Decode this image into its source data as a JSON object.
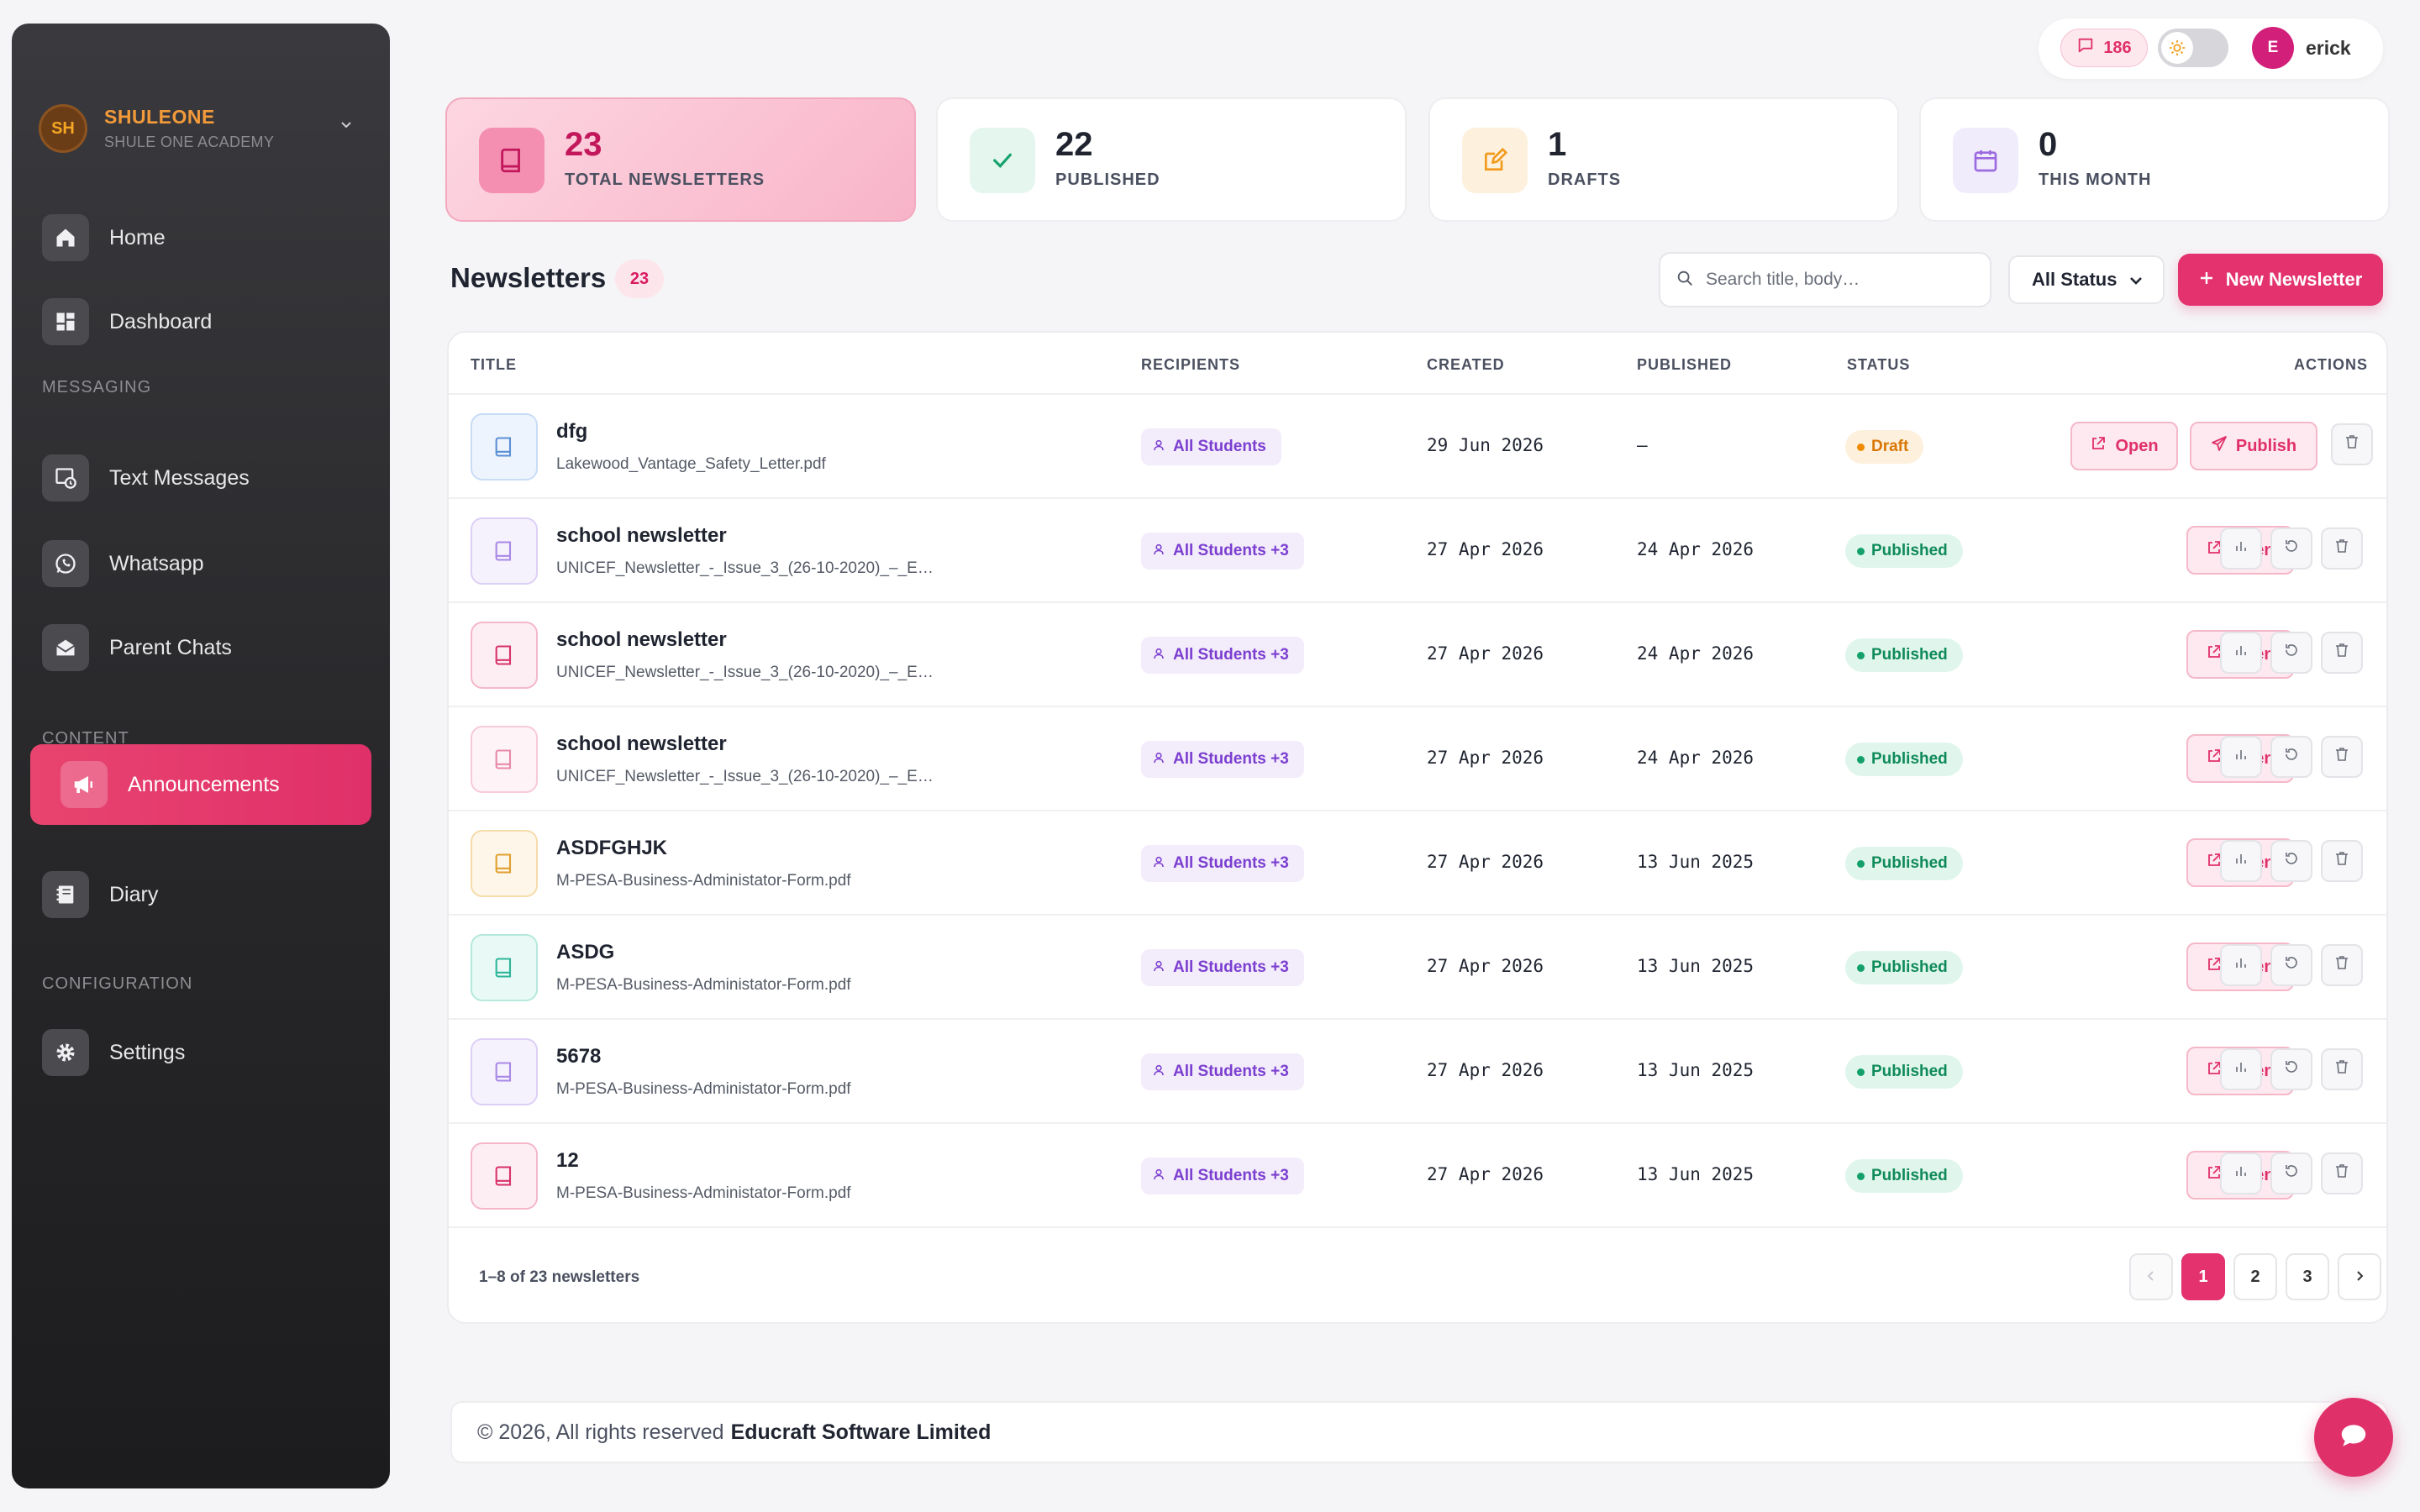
{
  "brand": {
    "initials": "SH",
    "name": "SHULEONE",
    "subtitle": "SHULE ONE ACADEMY"
  },
  "sidebar": {
    "items": [
      {
        "label": "Home",
        "icon": "home-icon"
      },
      {
        "label": "Dashboard",
        "icon": "dashboard-icon"
      },
      {
        "label": "Text Messages",
        "icon": "sms-icon"
      },
      {
        "label": "Whatsapp",
        "icon": "whatsapp-icon"
      },
      {
        "label": "Parent Chats",
        "icon": "mail-open-icon"
      },
      {
        "label": "Announcements",
        "icon": "megaphone-icon",
        "active": true
      },
      {
        "label": "Diary",
        "icon": "diary-icon"
      },
      {
        "label": "Settings",
        "icon": "gear-icon"
      }
    ],
    "sections": {
      "messaging": "MESSAGING",
      "content": "CONTENT",
      "configuration": "CONFIGURATION"
    }
  },
  "topbar": {
    "messages_count": "186",
    "user_initial": "E",
    "user_name": "erick"
  },
  "stats": [
    {
      "value": "23",
      "label": "TOTAL NEWSLETTERS",
      "icon": "book-icon"
    },
    {
      "value": "22",
      "label": "PUBLISHED",
      "icon": "check-icon"
    },
    {
      "value": "1",
      "label": "DRAFTS",
      "icon": "edit-icon"
    },
    {
      "value": "0",
      "label": "THIS MONTH",
      "icon": "calendar-icon"
    }
  ],
  "newsletters": {
    "title": "Newsletters",
    "count": "23",
    "search_placeholder": "Search title, body…",
    "status_filter": "All Status",
    "new_button": "New Newsletter",
    "columns": [
      "TITLE",
      "RECIPIENTS",
      "CREATED",
      "PUBLISHED",
      "STATUS",
      "ACTIONS"
    ],
    "rows": [
      {
        "title": "dfg",
        "file": "Lakewood_Vantage_Safety_Letter.pdf",
        "recipients": "All Students",
        "created": "29 Jun 2026",
        "published": "–",
        "status": "Draft"
      },
      {
        "title": "school newsletter",
        "file": "UNICEF_Newsletter_-_Issue_3_(26-10-2020)_–_E…",
        "recipients": "All Students +3",
        "created": "27 Apr 2026",
        "published": "24 Apr 2026",
        "status": "Published"
      },
      {
        "title": "school newsletter",
        "file": "UNICEF_Newsletter_-_Issue_3_(26-10-2020)_–_E…",
        "recipients": "All Students +3",
        "created": "27 Apr 2026",
        "published": "24 Apr 2026",
        "status": "Published"
      },
      {
        "title": "school newsletter",
        "file": "UNICEF_Newsletter_-_Issue_3_(26-10-2020)_–_E…",
        "recipients": "All Students +3",
        "created": "27 Apr 2026",
        "published": "24 Apr 2026",
        "status": "Published"
      },
      {
        "title": "ASDFGHJK",
        "file": "M-PESA-Business-Administator-Form.pdf",
        "recipients": "All Students +3",
        "created": "27 Apr 2026",
        "published": "13 Jun 2025",
        "status": "Published"
      },
      {
        "title": "ASDG",
        "file": "M-PESA-Business-Administator-Form.pdf",
        "recipients": "All Students +3",
        "created": "27 Apr 2026",
        "published": "13 Jun 2025",
        "status": "Published"
      },
      {
        "title": "5678",
        "file": "M-PESA-Business-Administator-Form.pdf",
        "recipients": "All Students +3",
        "created": "27 Apr 2026",
        "published": "13 Jun 2025",
        "status": "Published"
      },
      {
        "title": "12",
        "file": "M-PESA-Business-Administator-Form.pdf",
        "recipients": "All Students +3",
        "created": "27 Apr 2026",
        "published": "13 Jun 2025",
        "status": "Published"
      }
    ],
    "actions": {
      "open": "Open",
      "publish": "Publish"
    }
  },
  "pagination": {
    "info": "1–8 of 23 newsletters",
    "pages": [
      "1",
      "2",
      "3"
    ],
    "current": "1"
  },
  "footer": {
    "text": "© 2026, All rights reserved",
    "company": "Educraft Software Limited"
  },
  "colors": {
    "accent": "#e3326d",
    "published": "#0f8a5a",
    "draft": "#d97706",
    "recipient": "#7b3fd0"
  }
}
